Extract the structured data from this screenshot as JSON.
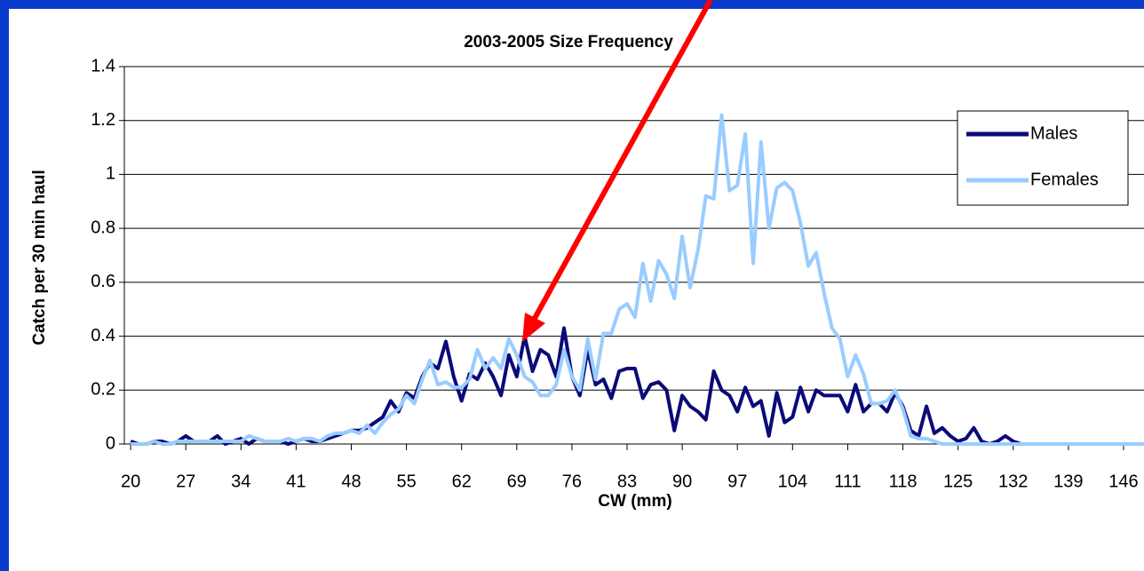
{
  "chart_data": {
    "type": "line",
    "title": "2003-2005 Size Frequency",
    "x_label": "CW (mm)",
    "y_label": "Catch per 30 min haul",
    "x": [
      20,
      21,
      22,
      23,
      24,
      25,
      26,
      27,
      28,
      29,
      30,
      31,
      32,
      33,
      34,
      35,
      36,
      37,
      38,
      39,
      40,
      41,
      42,
      43,
      44,
      45,
      46,
      47,
      48,
      49,
      50,
      51,
      52,
      53,
      54,
      55,
      56,
      57,
      58,
      59,
      60,
      61,
      62,
      63,
      64,
      65,
      66,
      67,
      68,
      69,
      70,
      71,
      72,
      73,
      74,
      75,
      76,
      77,
      78,
      79,
      80,
      81,
      82,
      83,
      84,
      85,
      86,
      87,
      88,
      89,
      90,
      91,
      92,
      93,
      94,
      95,
      96,
      97,
      98,
      99,
      100,
      101,
      102,
      103,
      104,
      105,
      106,
      107,
      108,
      109,
      110,
      111,
      112,
      113,
      114,
      115,
      116,
      117,
      118,
      119,
      120,
      121,
      122,
      123,
      124,
      125,
      126,
      127,
      128,
      129,
      130,
      131,
      132,
      133,
      134,
      135,
      136,
      137,
      138,
      139,
      140,
      141,
      142,
      143,
      144,
      145,
      146,
      147,
      148,
      149
    ],
    "series": [
      {
        "name": "Males",
        "color": "#0a0a78",
        "values": [
          0.01,
          0,
          0,
          0.01,
          0.01,
          0,
          0.01,
          0.03,
          0.01,
          0.01,
          0.01,
          0.03,
          0,
          0.01,
          0.02,
          0,
          0.02,
          0.01,
          0.01,
          0.01,
          0,
          0.01,
          0.02,
          0.01,
          0.01,
          0.02,
          0.03,
          0.04,
          0.05,
          0.05,
          0.06,
          0.08,
          0.1,
          0.16,
          0.12,
          0.19,
          0.17,
          0.25,
          0.3,
          0.28,
          0.38,
          0.25,
          0.16,
          0.26,
          0.24,
          0.3,
          0.25,
          0.18,
          0.33,
          0.25,
          0.4,
          0.27,
          0.35,
          0.33,
          0.25,
          0.43,
          0.25,
          0.18,
          0.35,
          0.22,
          0.24,
          0.17,
          0.27,
          0.28,
          0.28,
          0.17,
          0.22,
          0.23,
          0.2,
          0.05,
          0.18,
          0.14,
          0.12,
          0.09,
          0.27,
          0.2,
          0.18,
          0.12,
          0.21,
          0.14,
          0.16,
          0.03,
          0.19,
          0.08,
          0.1,
          0.21,
          0.12,
          0.2,
          0.18,
          0.18,
          0.18,
          0.12,
          0.22,
          0.12,
          0.15,
          0.15,
          0.12,
          0.19,
          0.14,
          0.05,
          0.03,
          0.14,
          0.04,
          0.06,
          0.03,
          0.01,
          0.02,
          0.06,
          0.01,
          0,
          0.01,
          0.03,
          0.01,
          0,
          0,
          0,
          0,
          0,
          0,
          0,
          0,
          0,
          0,
          0,
          0,
          0,
          0,
          0,
          0,
          0
        ]
      },
      {
        "name": "Females",
        "color": "#99ccff",
        "values": [
          0,
          0,
          0,
          0.01,
          0,
          0,
          0.01,
          0.01,
          0.01,
          0.01,
          0.01,
          0.01,
          0.01,
          0.01,
          0.01,
          0.03,
          0.02,
          0.01,
          0.01,
          0.01,
          0.02,
          0.01,
          0.02,
          0.02,
          0.01,
          0.03,
          0.04,
          0.04,
          0.05,
          0.04,
          0.07,
          0.04,
          0.08,
          0.11,
          0.13,
          0.18,
          0.15,
          0.24,
          0.31,
          0.22,
          0.23,
          0.21,
          0.21,
          0.24,
          0.35,
          0.28,
          0.32,
          0.28,
          0.39,
          0.33,
          0.25,
          0.23,
          0.18,
          0.18,
          0.22,
          0.35,
          0.25,
          0.2,
          0.39,
          0.24,
          0.41,
          0.41,
          0.5,
          0.52,
          0.47,
          0.67,
          0.53,
          0.68,
          0.63,
          0.54,
          0.77,
          0.58,
          0.72,
          0.92,
          0.91,
          1.22,
          0.94,
          0.96,
          1.15,
          0.67,
          1.12,
          0.8,
          0.95,
          0.97,
          0.94,
          0.82,
          0.66,
          0.71,
          0.56,
          0.43,
          0.39,
          0.25,
          0.33,
          0.26,
          0.15,
          0.15,
          0.16,
          0.2,
          0.13,
          0.03,
          0.02,
          0.02,
          0.01,
          0,
          0,
          0,
          0,
          0,
          0,
          0,
          0,
          0,
          0,
          0,
          0,
          0,
          0,
          0,
          0,
          0,
          0,
          0,
          0,
          0,
          0,
          0,
          0,
          0,
          0,
          0
        ]
      }
    ],
    "xlim": [
      19.2,
      148.6
    ],
    "xticks": [
      20,
      27,
      34,
      41,
      48,
      55,
      62,
      69,
      76,
      83,
      90,
      97,
      104,
      111,
      118,
      125,
      132,
      139,
      146
    ],
    "ylim": [
      0,
      1.4
    ],
    "yticks": [
      0,
      0.2,
      0.4,
      0.6,
      0.8,
      1,
      1.2,
      1.4
    ],
    "grid": true,
    "legend": "upper right"
  }
}
